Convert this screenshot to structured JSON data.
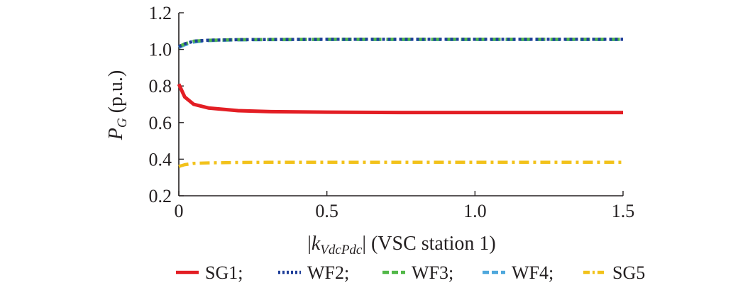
{
  "chart_data": {
    "type": "line",
    "xlim": [
      0,
      1.5
    ],
    "ylim": [
      0.2,
      1.2
    ],
    "x_ticks": [
      {
        "value": 0,
        "label": "0"
      },
      {
        "value": 0.5,
        "label": "0.5"
      },
      {
        "value": 1.0,
        "label": "1.0"
      },
      {
        "value": 1.5,
        "label": "1.5"
      }
    ],
    "y_ticks": [
      {
        "value": 0.2,
        "label": "0.2"
      },
      {
        "value": 0.4,
        "label": "0.4"
      },
      {
        "value": 0.6,
        "label": "0.6"
      },
      {
        "value": 0.8,
        "label": "0.8"
      },
      {
        "value": 1.0,
        "label": "1.0"
      },
      {
        "value": 1.2,
        "label": "1.2"
      }
    ],
    "xlabel": {
      "prefix": "|",
      "var": "k",
      "sub": "VdcPdc",
      "suffix": "| (VSC station 1)"
    },
    "ylabel": {
      "var": "P",
      "sub": "G",
      "suffix": " (p.u.)"
    },
    "grid": false,
    "legend_position": "bottom",
    "series": [
      {
        "name": "SG1",
        "separator": ";",
        "color": "#e31e24",
        "style": "solid",
        "x": [
          0,
          0.02,
          0.05,
          0.1,
          0.2,
          0.3,
          0.5,
          0.75,
          1.0,
          1.25,
          1.5
        ],
        "y": [
          0.81,
          0.74,
          0.7,
          0.68,
          0.665,
          0.66,
          0.657,
          0.655,
          0.655,
          0.655,
          0.655
        ]
      },
      {
        "name": "WF2",
        "separator": ";",
        "color": "#1f3f99",
        "style": "dotted",
        "x": [
          0,
          0.02,
          0.05,
          0.1,
          0.2,
          0.3,
          0.5,
          0.75,
          1.0,
          1.25,
          1.5
        ],
        "y": [
          1.015,
          1.03,
          1.045,
          1.05,
          1.053,
          1.054,
          1.055,
          1.055,
          1.055,
          1.055,
          1.055
        ]
      },
      {
        "name": "WF3",
        "separator": ";",
        "color": "#52b848",
        "style": "dashed",
        "x": [
          0,
          0.02,
          0.05,
          0.1,
          0.2,
          0.3,
          0.5,
          0.75,
          1.0,
          1.25,
          1.5
        ],
        "y": [
          1.015,
          1.03,
          1.045,
          1.05,
          1.053,
          1.054,
          1.055,
          1.055,
          1.055,
          1.055,
          1.055
        ]
      },
      {
        "name": "WF4",
        "separator": ";",
        "color": "#4fa8dc",
        "style": "dashed",
        "x": [
          0,
          0.02,
          0.05,
          0.1,
          0.2,
          0.3,
          0.5,
          0.75,
          1.0,
          1.25,
          1.5
        ],
        "y": [
          1.01,
          1.025,
          1.04,
          1.048,
          1.052,
          1.053,
          1.054,
          1.054,
          1.054,
          1.054,
          1.054
        ]
      },
      {
        "name": "SG5",
        "separator": "",
        "color": "#f2c21b",
        "style": "dashdot",
        "x": [
          0,
          0.02,
          0.05,
          0.1,
          0.2,
          0.3,
          0.5,
          0.75,
          1.0,
          1.25,
          1.5
        ],
        "y": [
          0.36,
          0.37,
          0.377,
          0.38,
          0.382,
          0.383,
          0.383,
          0.383,
          0.383,
          0.383,
          0.383
        ]
      }
    ]
  }
}
